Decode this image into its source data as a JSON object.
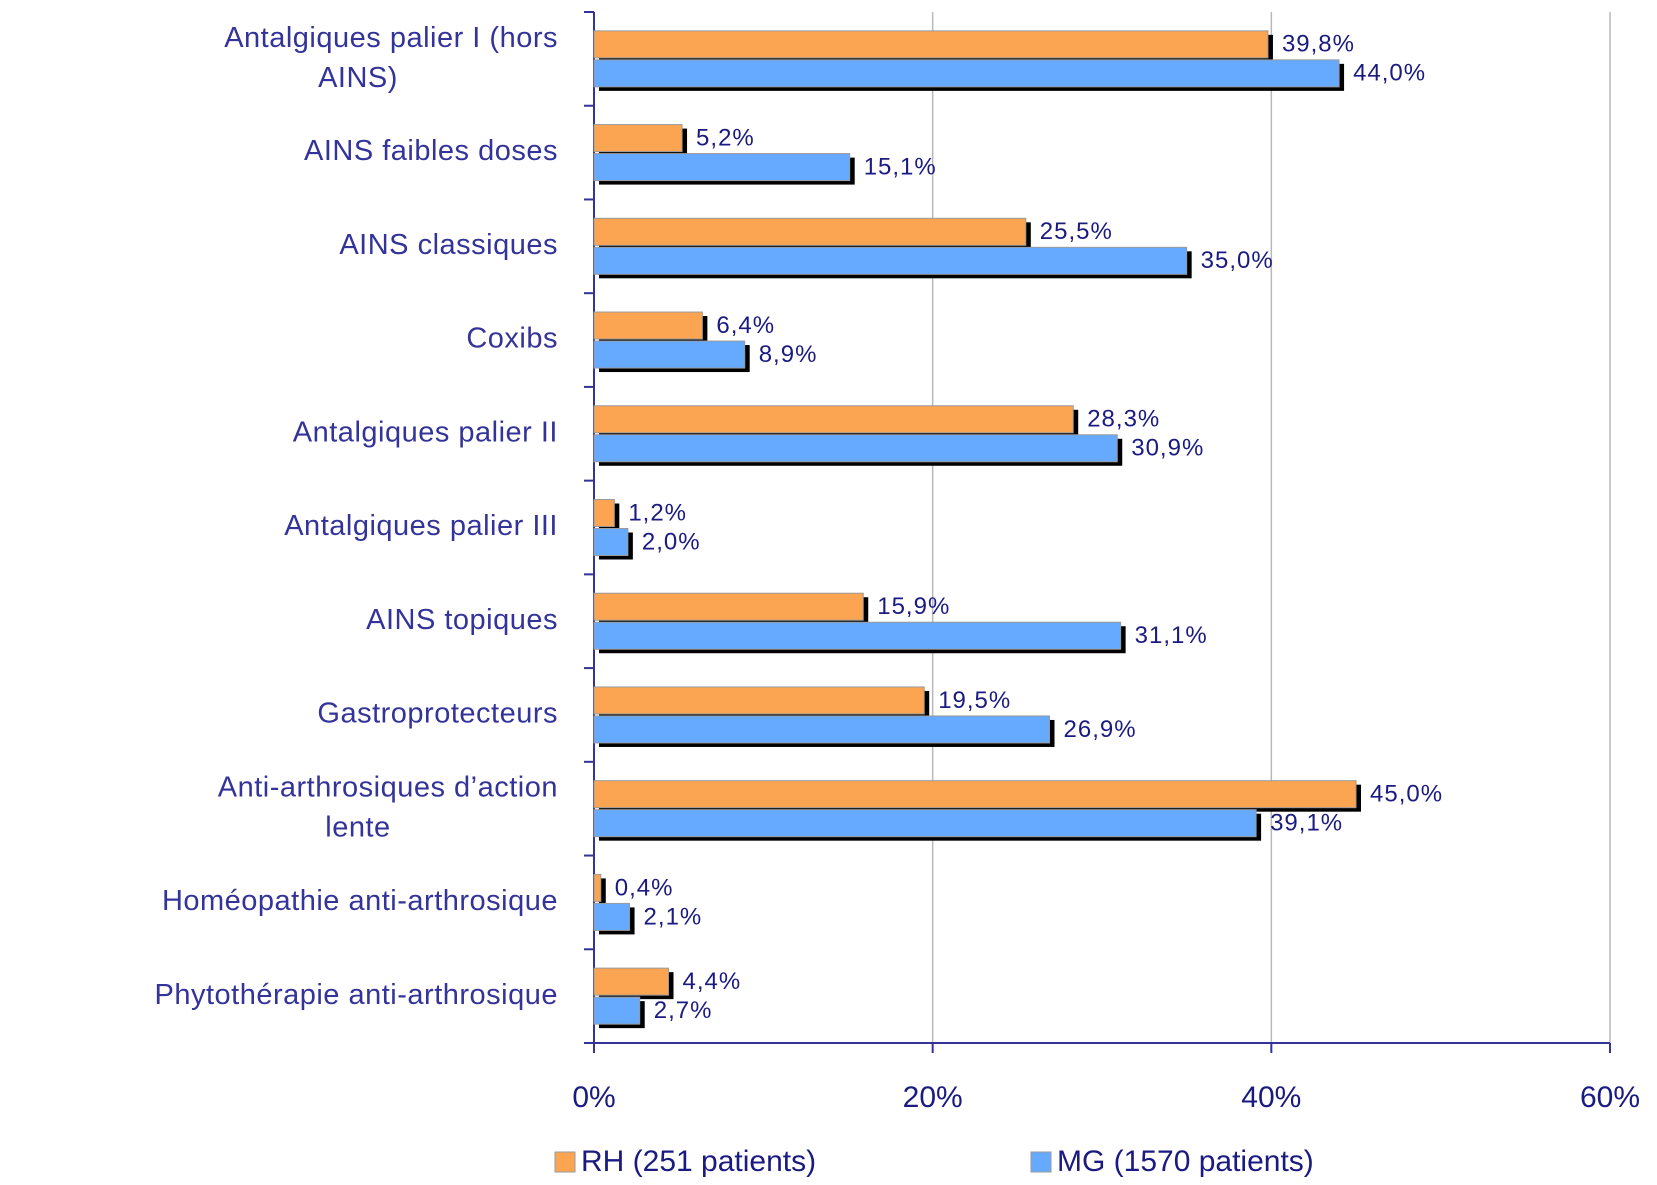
{
  "chart_data": {
    "type": "bar",
    "orientation": "horizontal",
    "categories": [
      "Antalgiques palier I (hors AINS)",
      "AINS faibles doses",
      "AINS classiques",
      "Coxibs",
      "Antalgiques palier II",
      "Antalgiques palier III",
      "AINS topiques",
      "Gastroprotecteurs",
      "Anti-arthrosiques d’action lente",
      "Homéopathie anti-arthrosique",
      "Phytothérapie anti-arthrosique"
    ],
    "series": [
      {
        "name": "RH (251 patients)",
        "color": "#fba552",
        "values": [
          39.8,
          5.2,
          25.5,
          6.4,
          28.3,
          1.2,
          15.9,
          19.5,
          45.0,
          0.4,
          4.4
        ],
        "value_labels": [
          "39,8%",
          "5,2%",
          "25,5%",
          "6,4%",
          "28,3%",
          "1,2%",
          "15,9%",
          "19,5%",
          "45,0%",
          "0,4%",
          "4,4%"
        ]
      },
      {
        "name": "MG (1570 patients)",
        "color": "#66aaff",
        "values": [
          44.0,
          15.1,
          35.0,
          8.9,
          30.9,
          2.0,
          31.1,
          26.9,
          39.1,
          2.1,
          2.7
        ],
        "value_labels": [
          "44,0%",
          "15,1%",
          "35,0%",
          "8,9%",
          "30,9%",
          "2,0%",
          "31,1%",
          "26,9%",
          "39,1%",
          "2,1%",
          "2,7%"
        ]
      }
    ],
    "xlim": [
      0,
      60
    ],
    "xticks": [
      {
        "value": 0,
        "label": "0%"
      },
      {
        "value": 20,
        "label": "20%"
      },
      {
        "value": 40,
        "label": "40%"
      },
      {
        "value": 60,
        "label": "60%"
      }
    ],
    "grid": true,
    "legend": "bottom"
  }
}
